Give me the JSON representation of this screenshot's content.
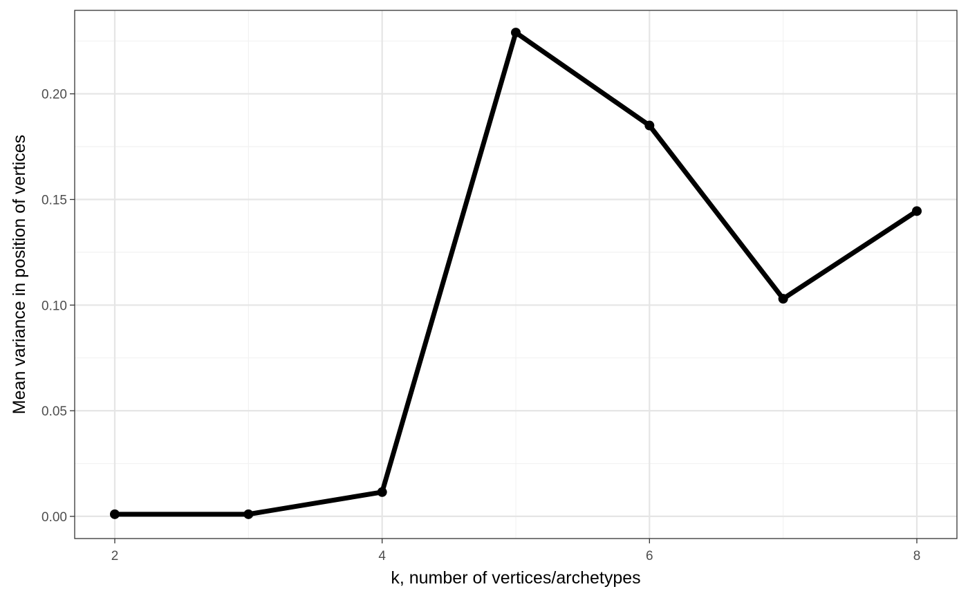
{
  "chart_data": {
    "type": "line",
    "title": "",
    "xlabel": "k, number of vertices/archetypes",
    "ylabel": "Mean variance in position of vertices",
    "x": [
      2,
      3,
      4,
      5,
      6,
      7,
      8
    ],
    "series": [
      {
        "values": [
          0.001,
          0.001,
          0.0115,
          0.229,
          0.185,
          0.103,
          0.1445
        ]
      }
    ],
    "xlim": [
      1.7,
      8.3
    ],
    "ylim": [
      -0.0105,
      0.2395
    ],
    "x_major_ticks": [
      2,
      4,
      6,
      8
    ],
    "x_tick_labels": [
      "2",
      "4",
      "6",
      "8"
    ],
    "x_minor_ticks": [
      3,
      5,
      7
    ],
    "y_major_ticks": [
      0,
      0.05,
      0.1,
      0.15,
      0.2
    ],
    "y_tick_labels": [
      "0.00",
      "0.05",
      "0.10",
      "0.15",
      "0.20"
    ],
    "y_minor_ticks": [
      0.025,
      0.075,
      0.125,
      0.175,
      0.225
    ],
    "grid": true,
    "legend": "none",
    "colors": {
      "line": "#000000",
      "panel_border": "#333333",
      "grid_major": "#e5e5e5",
      "grid_minor": "#f2f2f2",
      "tick_label": "#4d4d4d",
      "axis_title": "#000000"
    }
  }
}
